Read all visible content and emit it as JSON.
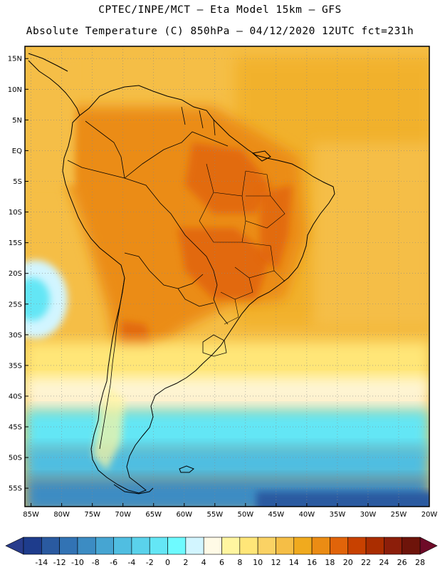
{
  "header": {
    "line1": "CPTEC/INPE/MCT –  Eta Model 15km – GFS",
    "line2": "Absolute Temperature (C) 850hPa – 04/12/2020 12UTC fct=231h"
  },
  "map": {
    "lon_range": [
      -86,
      -20
    ],
    "lat_range": [
      -58,
      17
    ],
    "lat_ticks": [
      {
        "v": 15,
        "label": "15N"
      },
      {
        "v": 10,
        "label": "10N"
      },
      {
        "v": 5,
        "label": "5N"
      },
      {
        "v": 0,
        "label": "EQ"
      },
      {
        "v": -5,
        "label": "5S"
      },
      {
        "v": -10,
        "label": "10S"
      },
      {
        "v": -15,
        "label": "15S"
      },
      {
        "v": -20,
        "label": "20S"
      },
      {
        "v": -25,
        "label": "25S"
      },
      {
        "v": -30,
        "label": "30S"
      },
      {
        "v": -35,
        "label": "35S"
      },
      {
        "v": -40,
        "label": "40S"
      },
      {
        "v": -45,
        "label": "45S"
      },
      {
        "v": -50,
        "label": "50S"
      },
      {
        "v": -55,
        "label": "55S"
      }
    ],
    "lon_ticks": [
      {
        "v": -85,
        "label": "85W"
      },
      {
        "v": -80,
        "label": "80W"
      },
      {
        "v": -75,
        "label": "75W"
      },
      {
        "v": -70,
        "label": "70W"
      },
      {
        "v": -65,
        "label": "65W"
      },
      {
        "v": -60,
        "label": "60W"
      },
      {
        "v": -55,
        "label": "55W"
      },
      {
        "v": -50,
        "label": "50W"
      },
      {
        "v": -45,
        "label": "45W"
      },
      {
        "v": -40,
        "label": "40W"
      },
      {
        "v": -35,
        "label": "35W"
      },
      {
        "v": -30,
        "label": "30W"
      },
      {
        "v": -25,
        "label": "25W"
      },
      {
        "v": -20,
        "label": "20W"
      }
    ]
  },
  "colorbar": {
    "labels": [
      "-14",
      "-12",
      "-10",
      "-8",
      "-6",
      "-4",
      "-2",
      "0",
      "2",
      "4",
      "6",
      "8",
      "10",
      "12",
      "14",
      "16",
      "18",
      "20",
      "22",
      "24",
      "26",
      "28"
    ],
    "colors": [
      "#1e3c8c",
      "#2a5aa0",
      "#3273b4",
      "#3c8cc3",
      "#46a5d2",
      "#50bee1",
      "#5ad2eb",
      "#64e6f5",
      "#6efaff",
      "#d2f5ff",
      "#fffae6",
      "#fff5a0",
      "#ffe678",
      "#fad264",
      "#f5be46",
      "#f0aa1e",
      "#eb8c14",
      "#e1640a",
      "#c84100",
      "#aa2d00",
      "#8c1e0a",
      "#6e140a"
    ],
    "low_color": "#283c8c",
    "high_color": "#6e0a28"
  }
}
